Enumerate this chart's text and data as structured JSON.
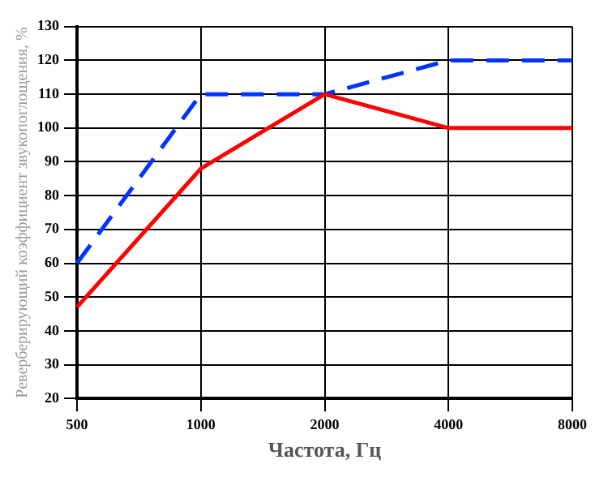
{
  "chart_data": {
    "type": "line",
    "xlabel": "Частота, Гц",
    "ylabel": "Реверберирующий коэффициент звукопоглощения, %",
    "categories": [
      "500",
      "1000",
      "2000",
      "4000",
      "8000"
    ],
    "series": [
      {
        "color": "#ff0000",
        "values": [
          47,
          88,
          110,
          100,
          100
        ],
        "line_style": "solid"
      },
      {
        "color": "#0033ff",
        "values": [
          60,
          110,
          110,
          120,
          120
        ],
        "line_style": "dashed"
      }
    ],
    "ylim": [
      20,
      130
    ],
    "yticks": [
      20,
      30,
      40,
      50,
      60,
      70,
      80,
      90,
      100,
      110,
      120,
      130
    ],
    "grid": true,
    "legend": false,
    "marker": "none"
  }
}
